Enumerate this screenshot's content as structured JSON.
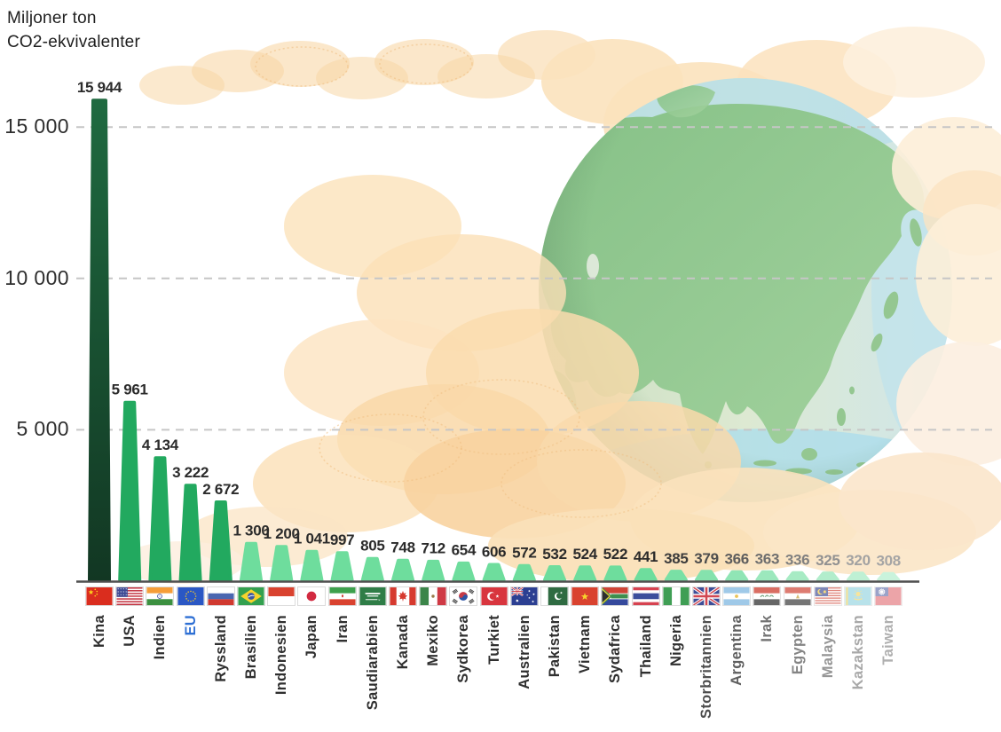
{
  "page": {
    "title_line1": "Miljoner ton",
    "title_line2": "CO2-ekvivalenter"
  },
  "y_axis": {
    "ticks": [
      {
        "label": "15 000",
        "value": 15000
      },
      {
        "label": "10 000",
        "value": 10000
      },
      {
        "label": "5 000",
        "value": 5000
      }
    ]
  },
  "chart_data": {
    "type": "bar",
    "title": "Miljoner ton CO2-ekvivalenter",
    "ylabel": "Miljoner ton CO2-ekvivalenter",
    "ylim": [
      0,
      16500
    ],
    "grid": "horizontal dashed gridlines at 5000, 10000, 15000",
    "legend_position": "none",
    "categories": [
      "Kina",
      "USA",
      "Indien",
      "EU",
      "Ryssland",
      "Brasilien",
      "Indonesien",
      "Japan",
      "Iran",
      "Saudiarabien",
      "Kanada",
      "Mexiko",
      "Sydkorea",
      "Turkiet",
      "Australien",
      "Pakistan",
      "Vietnam",
      "Sydafrica",
      "Thailand",
      "Nigeria",
      "Storbritannien",
      "Argentina",
      "Irak",
      "Egypten",
      "Malaysia",
      "Kazakstan",
      "Taiwan"
    ],
    "values": [
      15944,
      5961,
      4134,
      3222,
      2672,
      1300,
      1200,
      1041,
      997,
      805,
      748,
      712,
      654,
      606,
      572,
      532,
      524,
      522,
      441,
      385,
      379,
      366,
      363,
      336,
      325,
      320,
      308
    ],
    "value_labels": [
      "15 944",
      "5 961",
      "4 134",
      "3 222",
      "2 672",
      "1 300",
      "1 200",
      "1 041",
      "997",
      "805",
      "748",
      "712",
      "654",
      "606",
      "572",
      "532",
      "524",
      "522",
      "441",
      "385",
      "379",
      "366",
      "363",
      "336",
      "325",
      "320",
      "308"
    ],
    "flag_codes": [
      "cn",
      "us",
      "in",
      "eu",
      "ru",
      "br",
      "id",
      "jp",
      "ir",
      "sa",
      "ca",
      "mx",
      "kr",
      "tr",
      "au",
      "pk",
      "vn",
      "za",
      "th",
      "ng",
      "gb",
      "ar",
      "iq",
      "eg",
      "my",
      "kz",
      "tw"
    ]
  },
  "colors": {
    "bar_china_dark": "#1d5c36",
    "bar_top_green": "#22a95f",
    "bar_light_green": "#6edd9d",
    "eu_label_blue": "#2e6fd4",
    "label_dark": "#2b2b2b",
    "axis_line": "#4f4f4f",
    "grid_line": "#c6c6c6",
    "cloud_orange": "#fbe0b6",
    "globe_land_green": "#8fc78d"
  }
}
